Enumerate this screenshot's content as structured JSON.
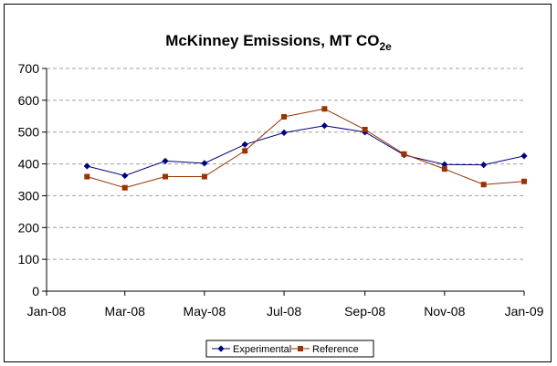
{
  "chart_data": {
    "type": "line",
    "title": "McKinney Emissions, MT CO",
    "title_subscript": "2e",
    "xlabel": "",
    "ylabel": "",
    "x_ticks": [
      "Jan-08",
      "Mar-08",
      "May-08",
      "Jul-08",
      "Sep-08",
      "Nov-08",
      "Jan-09"
    ],
    "x_range": [
      "2008-01-01",
      "2009-01-01"
    ],
    "ylim": [
      0,
      700
    ],
    "y_ticks": [
      0,
      100,
      200,
      300,
      400,
      500,
      600,
      700
    ],
    "grid": "horizontal dashed",
    "legend_position": "bottom",
    "x": [
      "2008-02-01",
      "2008-03-01",
      "2008-04-01",
      "2008-05-01",
      "2008-06-01",
      "2008-07-01",
      "2008-08-01",
      "2008-09-01",
      "2008-10-01",
      "2008-11-01",
      "2008-12-01",
      "2009-01-01"
    ],
    "series": [
      {
        "name": "Experimental",
        "color": "#000080",
        "marker": "diamond",
        "values": [
          393,
          363,
          409,
          402,
          461,
          498,
          520,
          500,
          428,
          398,
          397,
          425
        ]
      },
      {
        "name": "Reference",
        "color": "#993300",
        "marker": "square",
        "values": [
          360,
          325,
          360,
          360,
          441,
          548,
          573,
          508,
          431,
          384,
          335,
          345
        ]
      }
    ]
  }
}
